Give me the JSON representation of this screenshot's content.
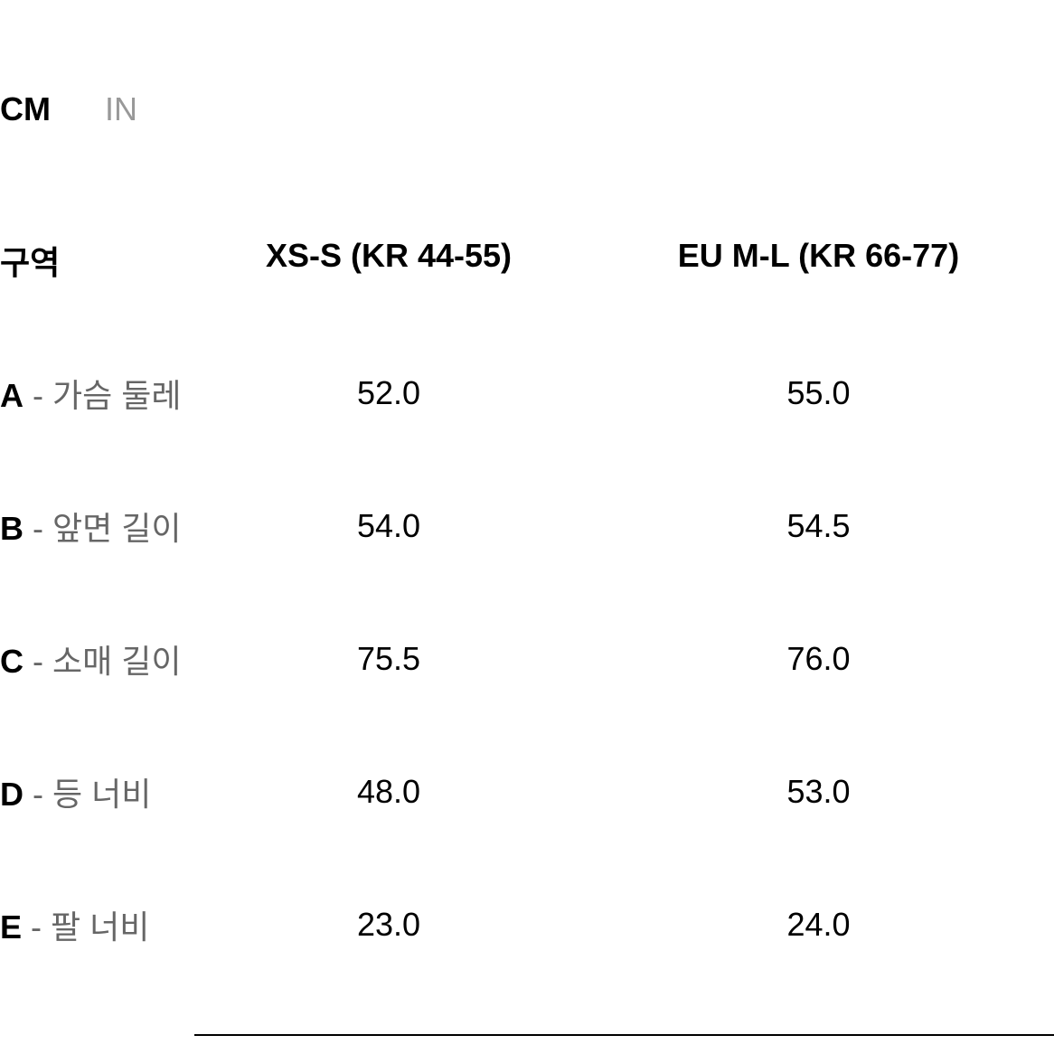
{
  "unitTabs": {
    "cm": "CM",
    "in": "IN",
    "active": "cm"
  },
  "table": {
    "headers": {
      "region": "구역",
      "size1": "XS-S (KR 44-55)",
      "size2": "EU M-L (KR 66-77)"
    },
    "rows": [
      {
        "letter": "A",
        "desc": " - 가슴 둘레",
        "val1": "52.0",
        "val2": "55.0"
      },
      {
        "letter": "B",
        "desc": " - 앞면 길이",
        "val1": "54.0",
        "val2": "54.5"
      },
      {
        "letter": "C",
        "desc": " - 소매 길이",
        "val1": "75.5",
        "val2": "76.0"
      },
      {
        "letter": "D",
        "desc": " - 등 너비",
        "val1": "48.0",
        "val2": "53.0"
      },
      {
        "letter": "E",
        "desc": " - 팔 너비",
        "val1": "23.0",
        "val2": "24.0"
      }
    ]
  },
  "styling": {
    "background_color": "#ffffff",
    "text_color": "#000000",
    "muted_text_color": "#666666",
    "inactive_tab_color": "#999999",
    "font_size_main": 36,
    "row_spacing": 95,
    "border_color": "#000000"
  }
}
